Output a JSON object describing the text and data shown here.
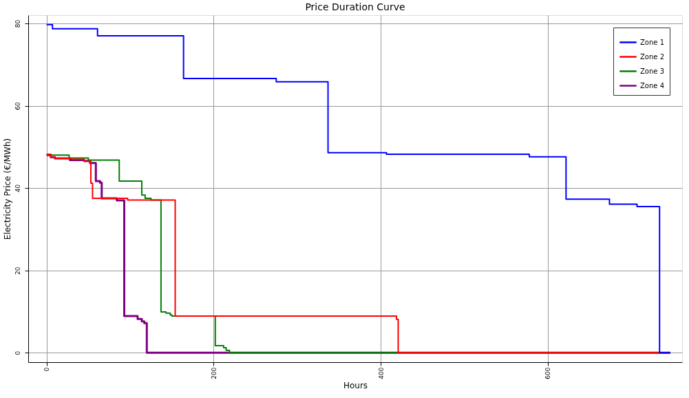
{
  "chart_data": {
    "type": "step",
    "title": "Price Duration Curve",
    "xlabel": "Hours",
    "ylabel": "Electricity Price (€/MWh)",
    "xlim": [
      -22,
      761
    ],
    "ylim": [
      -2.3,
      82
    ],
    "xticks": [
      0,
      200,
      400,
      600
    ],
    "yticks": [
      0,
      20,
      40,
      60,
      80
    ],
    "grid": true,
    "legend": "top right",
    "line_style": "solid",
    "marker": "none",
    "series": [
      {
        "name": "Zone 1",
        "color": "#0000ff",
        "x": [
          0,
          7,
          61,
          164,
          275,
          337,
          407,
          578,
          622,
          674,
          707,
          734,
          747
        ],
        "values": [
          79.7,
          78.7,
          77.0,
          66.6,
          65.8,
          48.6,
          48.2,
          47.6,
          37.3,
          36.1,
          35.5,
          0,
          0
        ]
      },
      {
        "name": "Zone 2",
        "color": "#ff0000",
        "x": [
          0,
          5,
          10,
          30,
          45,
          53,
          55,
          97,
          154,
          419,
          421,
          747
        ],
        "values": [
          48.2,
          47.5,
          47.2,
          47.0,
          46.5,
          41.2,
          37.5,
          37.1,
          8.9,
          8.1,
          0,
          0
        ]
      },
      {
        "name": "Zone 3",
        "color": "#008000",
        "x": [
          0,
          27,
          50,
          87,
          114,
          118,
          125,
          137,
          143,
          148,
          150,
          202,
          212,
          215,
          219,
          222,
          747
        ],
        "values": [
          48.0,
          47.3,
          46.8,
          41.7,
          38.3,
          37.5,
          37.1,
          9.9,
          9.6,
          9.2,
          8.9,
          1.7,
          1.2,
          0.6,
          0,
          0,
          0
        ]
      },
      {
        "name": "Zone 4",
        "color": "#800080",
        "x": [
          0,
          5,
          10,
          28,
          45,
          52,
          59,
          64,
          66,
          84,
          93,
          109,
          114,
          117,
          120,
          747
        ],
        "values": [
          48.0,
          47.5,
          47.2,
          46.8,
          46.6,
          46.1,
          41.7,
          41.3,
          37.5,
          37.0,
          8.9,
          8.2,
          7.6,
          7.2,
          0,
          0
        ]
      }
    ]
  }
}
